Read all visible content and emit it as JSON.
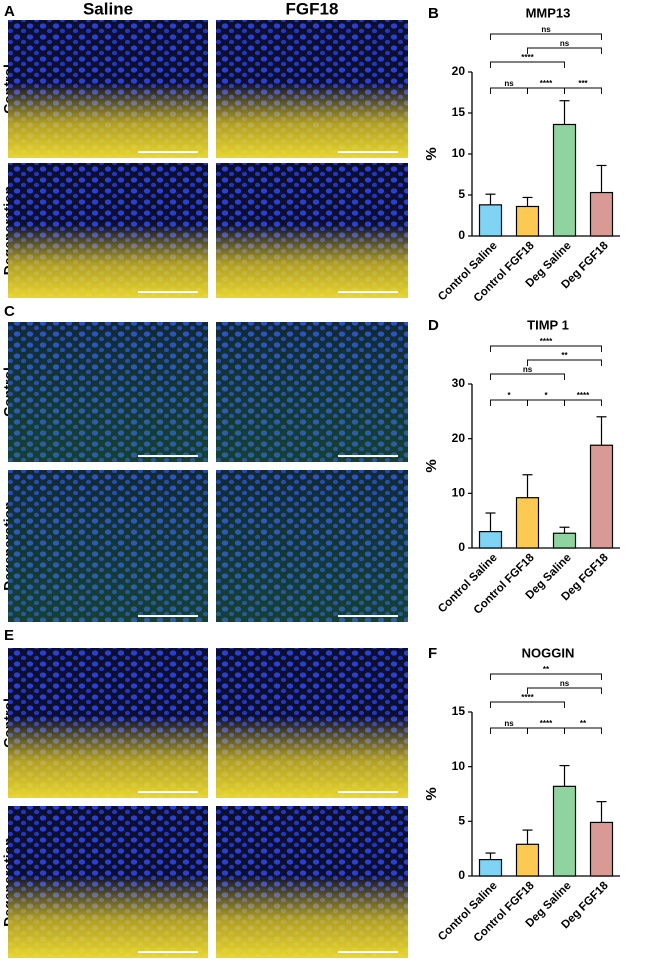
{
  "figure": {
    "panel_labels": [
      "A",
      "C",
      "E"
    ],
    "columns": [
      "Saline",
      "FGF18"
    ],
    "rows": [
      "Control",
      "Degeneration"
    ]
  },
  "chart_data": [
    {
      "type": "bar",
      "panel_label": "B",
      "title": "MMP13",
      "y_label": "%",
      "categories": [
        "Control Saline",
        "Control FGF18",
        "Deg Saline",
        "Deg FGF18"
      ],
      "values": [
        3.8,
        3.6,
        13.6,
        5.3
      ],
      "errors": [
        1.3,
        1.1,
        2.9,
        3.3
      ],
      "colors": [
        "#7fd4f4",
        "#fcca52",
        "#8fd3a0",
        "#d99a96"
      ],
      "ylim": [
        0,
        20
      ],
      "yticks": [
        0,
        5,
        10,
        15,
        20
      ],
      "comparisons": [
        {
          "pair": [
            0,
            3
          ],
          "label": "ns"
        },
        {
          "pair": [
            1,
            3
          ],
          "label": "ns"
        },
        {
          "pair": [
            0,
            2
          ],
          "label": "****"
        },
        {
          "pair": [
            0,
            1
          ],
          "label": "ns"
        },
        {
          "pair": [
            1,
            2
          ],
          "label": "****"
        },
        {
          "pair": [
            2,
            3
          ],
          "label": "***"
        }
      ]
    },
    {
      "type": "bar",
      "panel_label": "D",
      "title": "TIMP 1",
      "y_label": "%",
      "categories": [
        "Control Saline",
        "Control FGF18",
        "Deg Saline",
        "Deg FGF18"
      ],
      "values": [
        3.0,
        9.2,
        2.7,
        18.8
      ],
      "errors": [
        3.4,
        4.2,
        1.1,
        5.2
      ],
      "colors": [
        "#7fd4f4",
        "#fcca52",
        "#8fd3a0",
        "#d99a96"
      ],
      "ylim": [
        0,
        30
      ],
      "yticks": [
        0,
        10,
        20,
        30
      ],
      "comparisons": [
        {
          "pair": [
            0,
            3
          ],
          "label": "****"
        },
        {
          "pair": [
            1,
            3
          ],
          "label": "**"
        },
        {
          "pair": [
            0,
            2
          ],
          "label": "ns"
        },
        {
          "pair": [
            0,
            1
          ],
          "label": "*"
        },
        {
          "pair": [
            1,
            2
          ],
          "label": "*"
        },
        {
          "pair": [
            2,
            3
          ],
          "label": "****"
        }
      ]
    },
    {
      "type": "bar",
      "panel_label": "F",
      "title": "NOGGIN",
      "y_label": "%",
      "categories": [
        "Control Saline",
        "Control FGF18",
        "Deg Saline",
        "Deg FGF18"
      ],
      "values": [
        1.5,
        2.9,
        8.2,
        4.9
      ],
      "errors": [
        0.6,
        1.3,
        1.9,
        1.9
      ],
      "colors": [
        "#7fd4f4",
        "#fcca52",
        "#8fd3a0",
        "#d99a96"
      ],
      "ylim": [
        0,
        15
      ],
      "yticks": [
        0,
        5,
        10,
        15
      ],
      "comparisons": [
        {
          "pair": [
            0,
            3
          ],
          "label": "**"
        },
        {
          "pair": [
            1,
            3
          ],
          "label": "ns"
        },
        {
          "pair": [
            0,
            2
          ],
          "label": "****"
        },
        {
          "pair": [
            0,
            1
          ],
          "label": "ns"
        },
        {
          "pair": [
            1,
            2
          ],
          "label": "****"
        },
        {
          "pair": [
            2,
            3
          ],
          "label": "**"
        }
      ]
    }
  ]
}
